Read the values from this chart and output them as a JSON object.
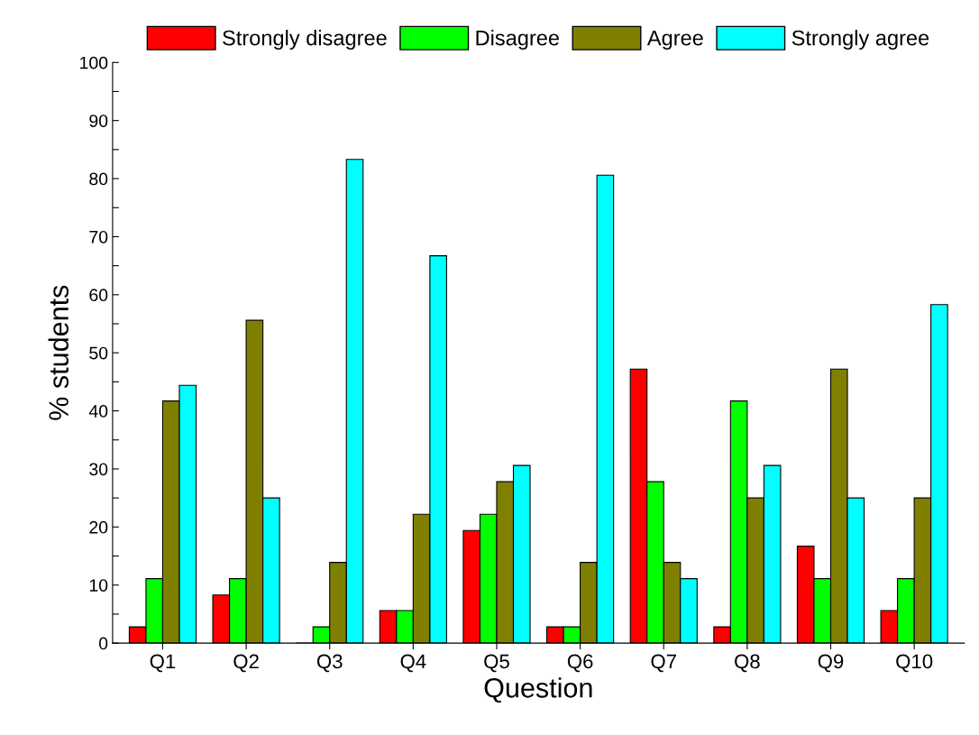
{
  "chart_data": {
    "type": "bar",
    "xlabel": "Question",
    "ylabel": "% students",
    "categories": [
      "Q1",
      "Q2",
      "Q3",
      "Q4",
      "Q5",
      "Q6",
      "Q7",
      "Q8",
      "Q9",
      "Q10"
    ],
    "series": [
      {
        "name": "Strongly disagree",
        "color": "#ff0000",
        "values": [
          2.8,
          8.3,
          0,
          5.6,
          19.4,
          2.8,
          47.2,
          2.8,
          16.7,
          5.6
        ]
      },
      {
        "name": "Disagree",
        "color": "#00ff00",
        "values": [
          11.1,
          11.1,
          2.8,
          5.6,
          22.2,
          2.8,
          27.8,
          41.7,
          11.1,
          11.1
        ]
      },
      {
        "name": "Agree",
        "color": "#808000",
        "values": [
          41.7,
          55.6,
          13.9,
          22.2,
          27.8,
          13.9,
          13.9,
          25,
          47.2,
          25
        ]
      },
      {
        "name": "Strongly agree",
        "color": "#00ffff",
        "values": [
          44.4,
          25,
          83.3,
          66.7,
          30.6,
          80.6,
          11.1,
          30.6,
          25,
          58.3
        ]
      }
    ],
    "ylim": [
      0,
      100
    ],
    "yticks": [
      0,
      {
        "value": 5,
        "label": null
      },
      10,
      {
        "value": 15,
        "label": null
      },
      20,
      {
        "value": 25,
        "label": null
      },
      30,
      {
        "value": 35,
        "label": null
      },
      40,
      {
        "value": 45,
        "label": null
      },
      50,
      {
        "value": 55,
        "label": null
      },
      60,
      {
        "value": 65,
        "label": null
      },
      70,
      {
        "value": 75,
        "label": null
      },
      80,
      {
        "value": 85,
        "label": null
      },
      90,
      {
        "value": 95,
        "label": null
      },
      100
    ],
    "grid": false,
    "legend": "top"
  }
}
